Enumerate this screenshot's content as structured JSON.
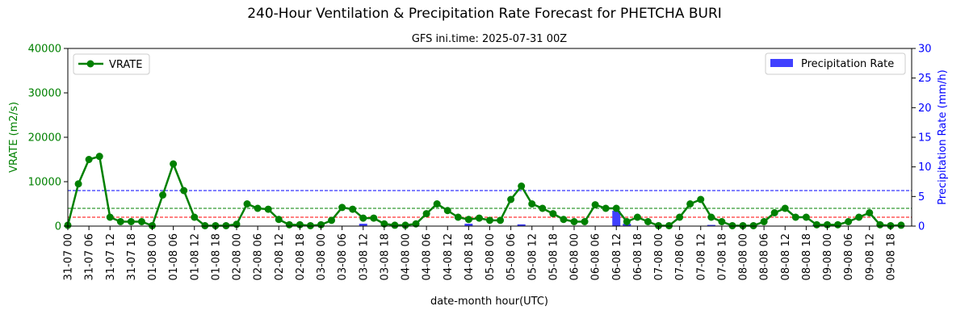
{
  "chart_data": {
    "type": "line",
    "title": "240-Hour Ventilation & Precipitation Rate Forecast for PHETCHA BURI",
    "subtitle": "GFS ini.time: 2025-07-31 00Z",
    "xlabel": "date-month hour(UTC)",
    "ylabel_left": "VRATE (m2/s)",
    "ylabel_right": "Precipitation Rate (mm/h)",
    "ylim_left": [
      0,
      40000
    ],
    "ylim_right": [
      0,
      30
    ],
    "yticks_left": [
      "0",
      "10000",
      "20000",
      "30000",
      "40000"
    ],
    "yticks_right": [
      "0",
      "5",
      "10",
      "15",
      "20",
      "25",
      "30"
    ],
    "x": [
      "31-07 00",
      "31-07 06",
      "31-07 12",
      "31-07 18",
      "01-08 00",
      "01-08 06",
      "01-08 12",
      "01-08 18",
      "02-08 00",
      "02-08 06",
      "02-08 12",
      "02-08 18",
      "03-08 00",
      "03-08 06",
      "03-08 12",
      "03-08 18",
      "04-08 00",
      "04-08 06",
      "04-08 12",
      "04-08 18",
      "05-08 00",
      "05-08 06",
      "05-08 12",
      "05-08 18",
      "06-08 00",
      "06-08 06",
      "06-08 12",
      "06-08 18",
      "07-08 00",
      "07-08 06",
      "07-08 12",
      "07-08 18",
      "08-08 00",
      "08-08 06",
      "08-08 12",
      "08-08 18",
      "09-08 00",
      "09-08 06",
      "09-08 12",
      "09-08 18"
    ],
    "vrate": [
      200,
      9500,
      15000,
      15700,
      2000,
      1000,
      1000,
      1000,
      100,
      7000,
      14000,
      8000,
      2000,
      100,
      100,
      100,
      400,
      5000,
      4000,
      3800,
      1500,
      300,
      300,
      100,
      300,
      1300,
      4200,
      3800,
      1800,
      1800,
      500,
      200,
      200,
      500,
      2800,
      5000,
      3500,
      2000,
      1500,
      1800,
      1300,
      1300,
      6000,
      9000,
      5000,
      4000,
      2800,
      1500,
      1000,
      1000,
      4800,
      4000,
      4000,
      1000,
      2000,
      1000,
      100,
      100,
      2000,
      5000,
      6000,
      2000,
      1000,
      100,
      100,
      100,
      1000,
      3000,
      4000,
      2000,
      2000,
      300,
      300,
      300,
      1000,
      2000,
      3000,
      300,
      100,
      200
    ],
    "precip": [
      0,
      0,
      0,
      0,
      0,
      0,
      0,
      0,
      0,
      0,
      0,
      0,
      0,
      0,
      0,
      0,
      0,
      0,
      0,
      0,
      0,
      0,
      0,
      0,
      0,
      0,
      0,
      0,
      0.4,
      0,
      0,
      0,
      0,
      0,
      0,
      0,
      0,
      0,
      0.4,
      0,
      0,
      0,
      0,
      0.3,
      0,
      0,
      0,
      0,
      0,
      0,
      0,
      0,
      2.6,
      0.4,
      0,
      0,
      0,
      0,
      0,
      0,
      0,
      0.2,
      0,
      0,
      0,
      0,
      0,
      0,
      0,
      0,
      0,
      0.3,
      0,
      0,
      0,
      0,
      0,
      0,
      0,
      0
    ],
    "series": [
      {
        "name": "VRATE",
        "color": "#008000"
      },
      {
        "name": "Precipitation Rate",
        "color": "#4040ff"
      }
    ],
    "reference_lines": [
      {
        "axis": "left",
        "value": 2000,
        "color": "#ff0000",
        "style": "dashed"
      },
      {
        "axis": "left",
        "value": 4000,
        "color": "#008000",
        "style": "dashed"
      },
      {
        "axis": "left",
        "value": 8000,
        "color": "#0000ff",
        "style": "dashed"
      }
    ],
    "legend_left_position": "upper-left",
    "legend_right_position": "upper-right",
    "grid": false
  }
}
